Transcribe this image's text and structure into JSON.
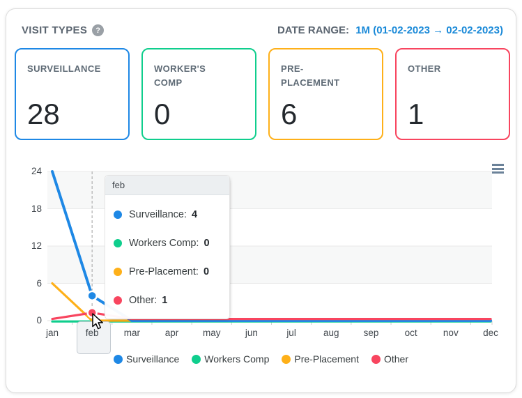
{
  "header": {
    "title": "VISIT TYPES",
    "help_glyph": "?",
    "date_range_label": "DATE RANGE:",
    "date_range_value": "1M (01-02-2023 → 02-02-2023)",
    "date_range_color": "#1989d8"
  },
  "cards": [
    {
      "label": "SURVEILLANCE",
      "value": "28",
      "color": "#1e88e5"
    },
    {
      "label": "WORKER'S COMP",
      "value": "0",
      "color": "#0fce8d"
    },
    {
      "label": "PRE-PLACEMENT",
      "value": "6",
      "color": "#feb019"
    },
    {
      "label": "OTHER",
      "value": "1",
      "color": "#f8455f"
    }
  ],
  "chart_data": {
    "type": "line",
    "categories": [
      "jan",
      "feb",
      "mar",
      "apr",
      "may",
      "jun",
      "jul",
      "aug",
      "sep",
      "oct",
      "nov",
      "dec"
    ],
    "series": [
      {
        "name": "Surveillance",
        "color": "#1e88e5",
        "values": [
          24,
          4,
          0,
          0,
          0,
          0,
          0,
          0,
          0,
          0,
          0,
          0
        ]
      },
      {
        "name": "Workers Comp",
        "color": "#0fce8d",
        "values": [
          0,
          0,
          0,
          0,
          0,
          0,
          0,
          0,
          0,
          0,
          0,
          0
        ]
      },
      {
        "name": "Pre-Placement",
        "color": "#feb019",
        "values": [
          6,
          0,
          0,
          0,
          0,
          0,
          0,
          0,
          0,
          0,
          0,
          0
        ]
      },
      {
        "name": "Other",
        "color": "#f8455f",
        "values": [
          0,
          1,
          0,
          0,
          0,
          0,
          0,
          0,
          0,
          0,
          0,
          0
        ]
      }
    ],
    "ylim": [
      0,
      24
    ],
    "yticks": [
      0,
      6,
      12,
      18,
      24
    ],
    "grid": true,
    "row_stripes": true,
    "legend_position": "bottom",
    "highlight_category": "feb",
    "highlight_index": 1
  },
  "tooltip": {
    "title": "feb",
    "rows": [
      {
        "label": "Surveillance:",
        "value": "4",
        "color": "#1e88e5"
      },
      {
        "label": "Workers Comp:",
        "value": "0",
        "color": "#0fce8d"
      },
      {
        "label": "Pre-Placement:",
        "value": "0",
        "color": "#feb019"
      },
      {
        "label": "Other:",
        "value": "1",
        "color": "#f8455f"
      }
    ]
  },
  "legend": [
    {
      "label": "Surveillance",
      "color": "#1e88e5"
    },
    {
      "label": "Workers Comp",
      "color": "#0fce8d"
    },
    {
      "label": "Pre-Placement",
      "color": "#feb019"
    },
    {
      "label": "Other",
      "color": "#f8455f"
    }
  ]
}
